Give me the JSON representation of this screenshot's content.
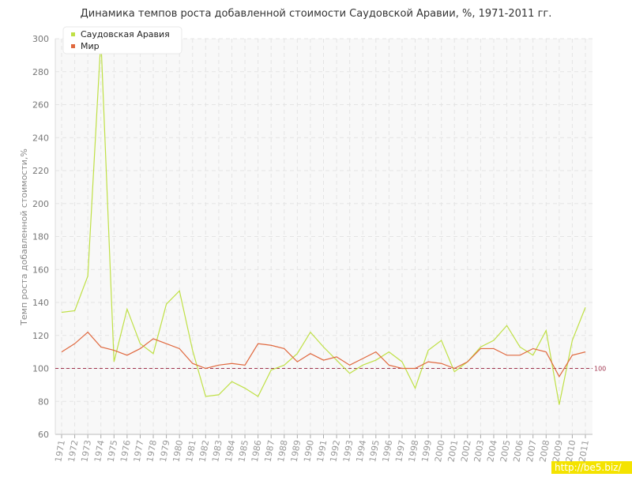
{
  "chart_data": {
    "type": "line",
    "title": "Динамика темпов роста добавленной стоимости Саудовской Аравии, %, 1971-2011 гг.",
    "y_label": "Темп роста добавленной стоимости,%",
    "categories": [
      "1971",
      "1972",
      "1973",
      "1974",
      "1975",
      "1976",
      "1977",
      "1978",
      "1979",
      "1980",
      "1981",
      "1982",
      "1983",
      "1984",
      "1985",
      "1986",
      "1987",
      "1988",
      "1989",
      "1990",
      "1991",
      "1992",
      "1993",
      "1994",
      "1995",
      "1996",
      "1997",
      "1998",
      "1999",
      "2000",
      "2001",
      "2002",
      "2003",
      "2004",
      "2005",
      "2006",
      "2007",
      "2008",
      "2009",
      "2010",
      "2011"
    ],
    "series": [
      {
        "name": "Саудовская Аравия",
        "color": "#bfe045",
        "values": [
          134,
          135,
          156,
          300,
          104,
          136,
          115,
          109,
          139,
          147,
          111,
          83,
          84,
          92,
          88,
          83,
          99,
          102,
          109,
          122,
          113,
          105,
          97,
          102,
          105,
          110,
          104,
          88,
          111,
          117,
          98,
          104,
          113,
          117,
          126,
          113,
          108,
          123,
          78,
          117,
          137
        ]
      },
      {
        "name": "Мир",
        "color": "#e0683e",
        "values": [
          110,
          115,
          122,
          113,
          111,
          108,
          112,
          118,
          115,
          112,
          103,
          100,
          102,
          103,
          102,
          115,
          114,
          112,
          104,
          109,
          105,
          107,
          102,
          106,
          110,
          102,
          100,
          100,
          104,
          103,
          100,
          104,
          112,
          112,
          108,
          108,
          112,
          110,
          95,
          108,
          110
        ]
      }
    ],
    "ylim": [
      60,
      300
    ],
    "yticks": [
      60,
      80,
      100,
      120,
      140,
      160,
      180,
      200,
      220,
      240,
      260,
      280,
      300
    ],
    "grid": true,
    "legend": "top-left",
    "reference_line": 100,
    "watermark": "http://be5.biz/"
  }
}
